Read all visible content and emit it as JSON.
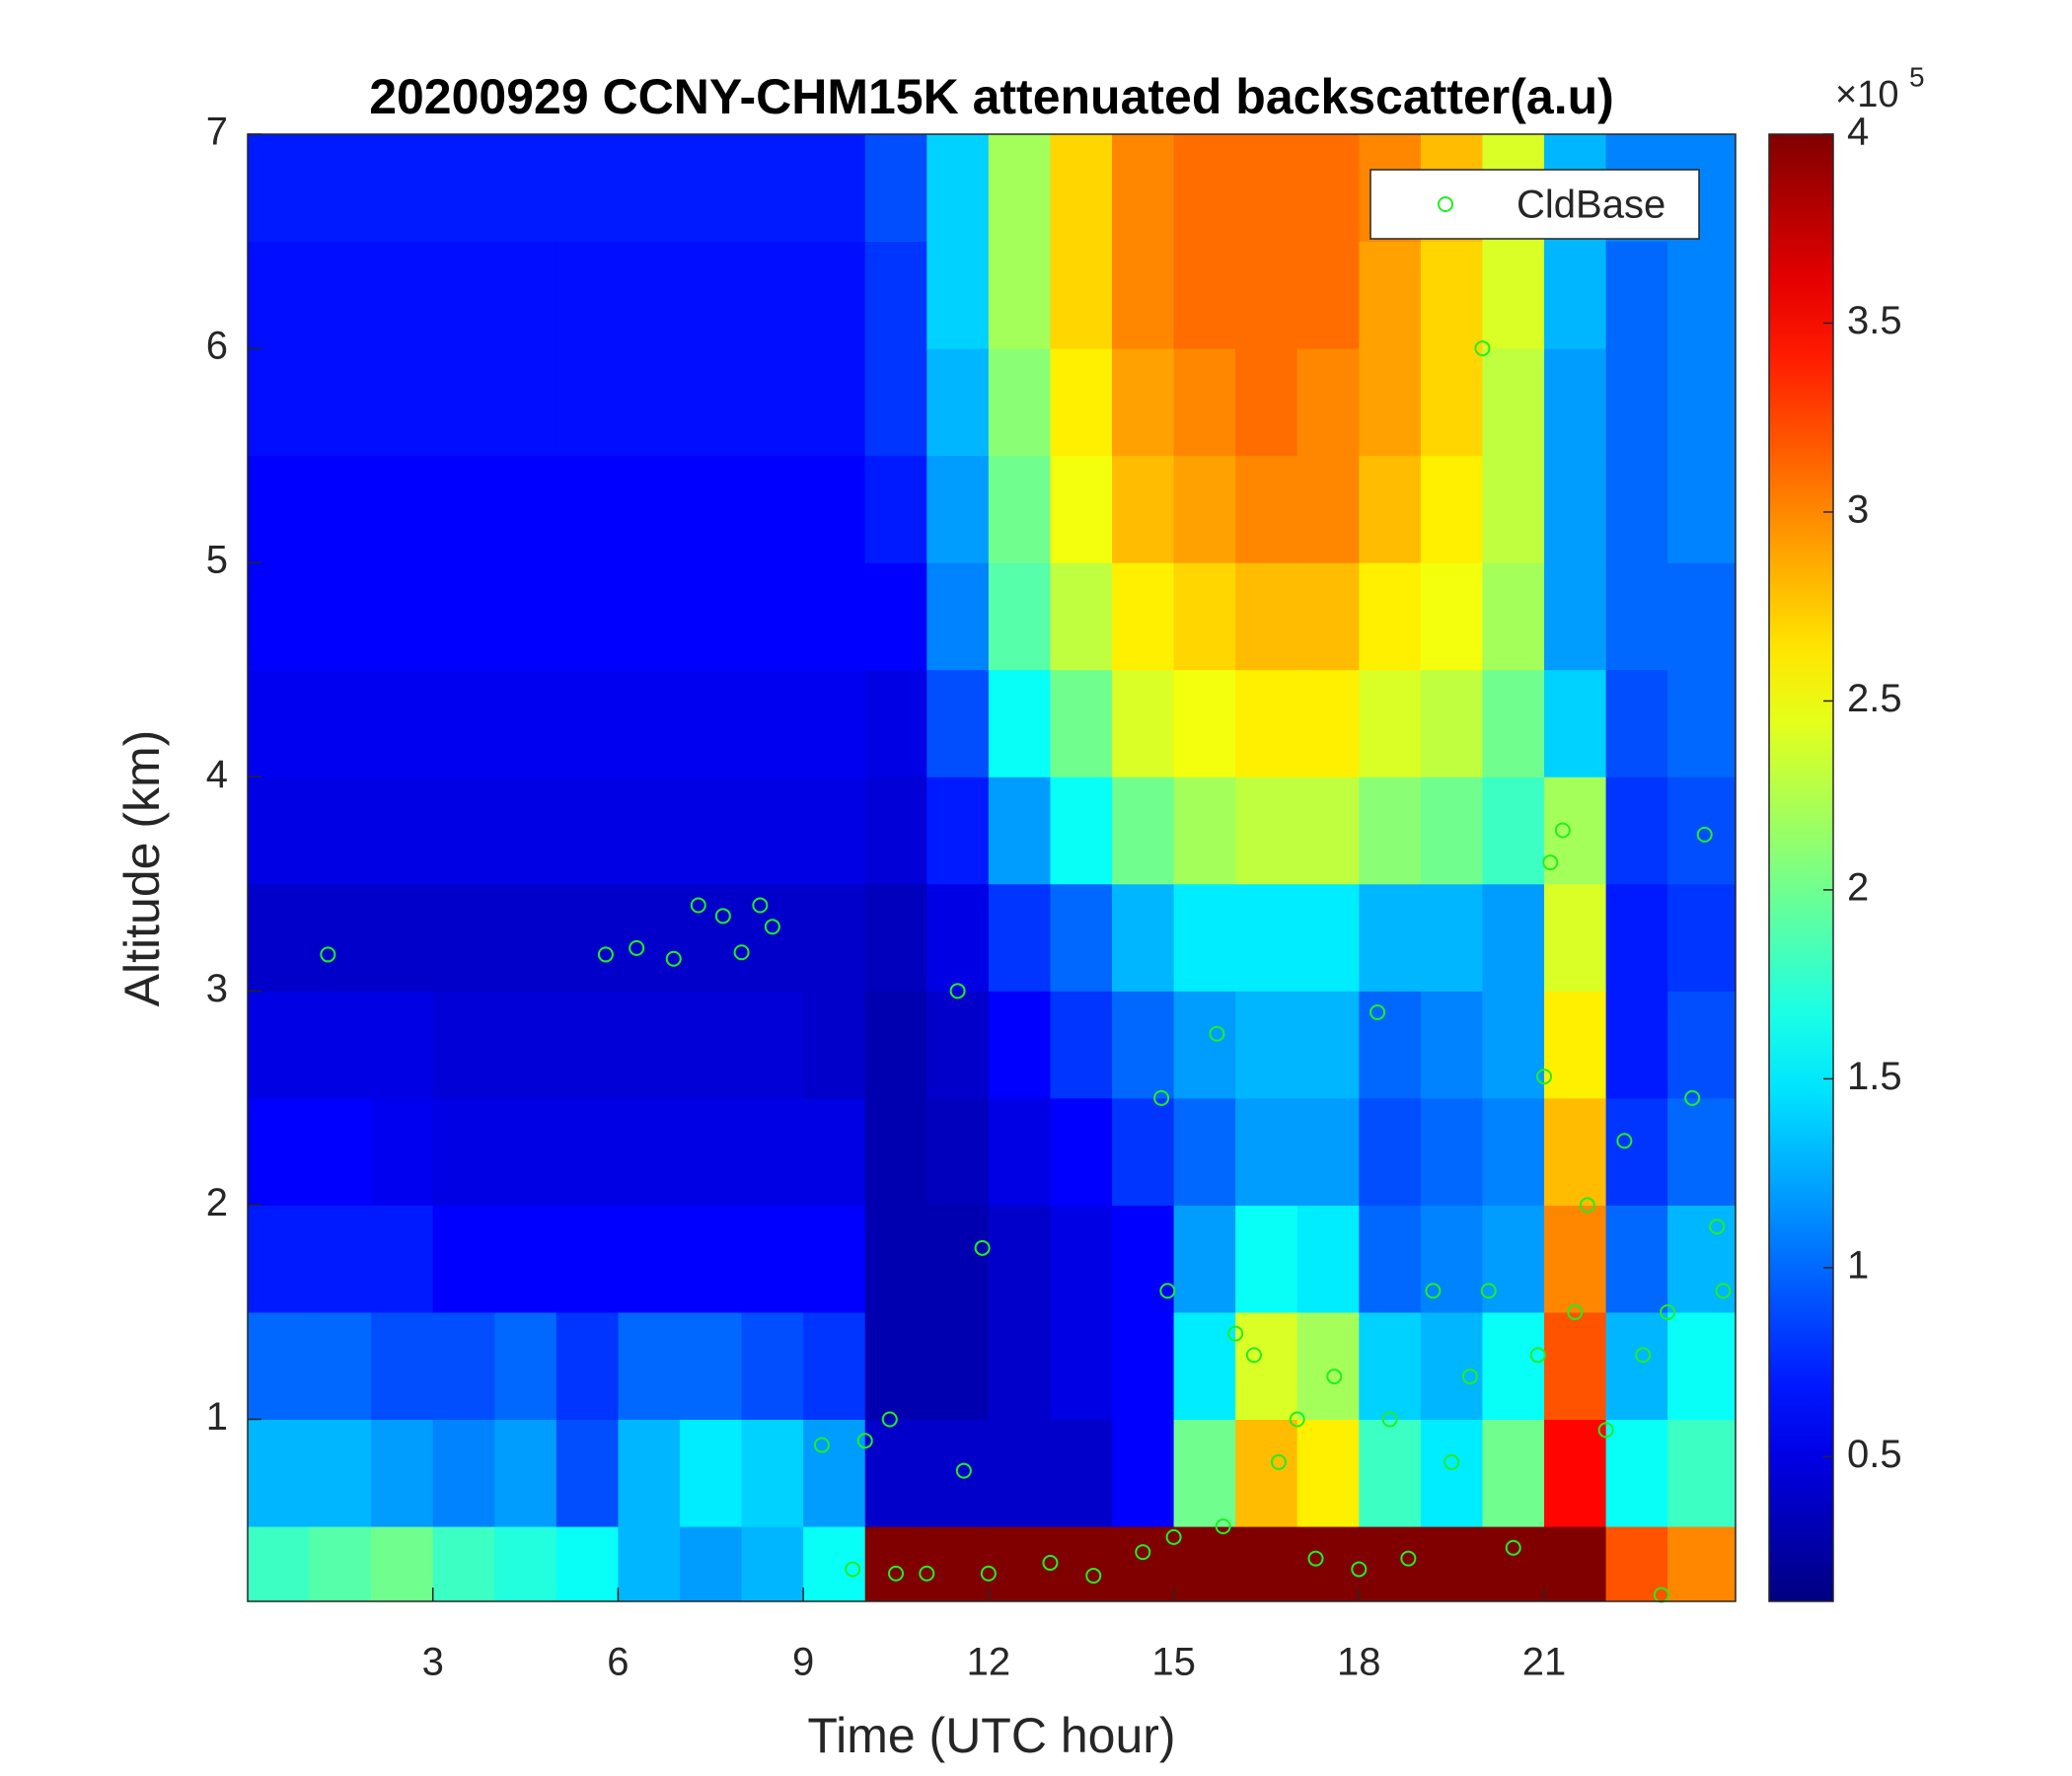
{
  "chart_data": {
    "type": "heatmap",
    "title": "20200929 CCNY-CHM15K attenuated backscatter(a.u)",
    "x_label": "Time (UTC hour)",
    "y_label": "Altitude (km)",
    "xlim": [
      0,
      24.1
    ],
    "ylim": [
      0.15,
      7
    ],
    "xticks": [
      3,
      6,
      9,
      12,
      15,
      18,
      21
    ],
    "yticks": [
      1,
      2,
      3,
      4,
      5,
      6,
      7
    ],
    "x_edges": [
      0,
      1,
      2,
      3,
      4,
      5,
      6,
      7,
      8,
      9,
      10,
      11,
      12,
      13,
      14,
      15,
      16,
      17,
      18,
      19,
      20,
      21,
      22,
      23,
      24.1
    ],
    "y_edges": [
      0.15,
      0.5,
      1,
      1.5,
      2,
      2.5,
      3,
      3.5,
      4,
      4.5,
      5,
      5.5,
      6,
      6.5,
      7
    ],
    "z": [
      [
        1.8,
        1.9,
        2.0,
        1.8,
        1.7,
        1.6,
        1.3,
        1.2,
        1.3,
        1.6,
        4,
        4,
        4,
        4,
        4,
        4,
        4,
        4,
        4,
        4,
        4,
        4,
        3.2,
        3.0
      ],
      [
        1.3,
        1.3,
        1.2,
        1.1,
        1.2,
        0.9,
        1.3,
        1.5,
        1.4,
        1.2,
        0.4,
        0.4,
        0.4,
        0.4,
        0.6,
        2.0,
        2.8,
        2.6,
        1.8,
        1.5,
        2.0,
        3.5,
        1.6,
        1.8
      ],
      [
        1.0,
        1.0,
        0.9,
        0.9,
        1.0,
        0.8,
        1.0,
        1.0,
        0.9,
        0.8,
        0.3,
        0.3,
        0.4,
        0.5,
        0.6,
        1.5,
        2.4,
        2.2,
        1.4,
        1.3,
        1.6,
        3.2,
        1.3,
        1.6
      ],
      [
        0.7,
        0.7,
        0.7,
        0.6,
        0.6,
        0.6,
        0.6,
        0.6,
        0.6,
        0.6,
        0.3,
        0.3,
        0.4,
        0.5,
        0.6,
        1.2,
        1.6,
        1.5,
        1.0,
        1.1,
        1.2,
        3.0,
        1.0,
        1.3
      ],
      [
        0.6,
        0.6,
        0.55,
        0.5,
        0.5,
        0.5,
        0.5,
        0.5,
        0.5,
        0.5,
        0.3,
        0.35,
        0.5,
        0.6,
        0.8,
        1.0,
        1.2,
        1.2,
        0.9,
        1.0,
        1.1,
        2.8,
        0.8,
        1.0
      ],
      [
        0.5,
        0.5,
        0.5,
        0.45,
        0.45,
        0.45,
        0.45,
        0.45,
        0.45,
        0.4,
        0.3,
        0.4,
        0.6,
        0.8,
        1.0,
        1.2,
        1.3,
        1.3,
        1.0,
        1.1,
        1.2,
        2.6,
        0.7,
        0.9
      ],
      [
        0.4,
        0.4,
        0.4,
        0.4,
        0.4,
        0.4,
        0.4,
        0.4,
        0.4,
        0.4,
        0.35,
        0.5,
        0.8,
        1.0,
        1.3,
        1.5,
        1.5,
        1.5,
        1.3,
        1.3,
        1.2,
        2.4,
        0.7,
        0.8
      ],
      [
        0.5,
        0.5,
        0.5,
        0.5,
        0.5,
        0.5,
        0.5,
        0.5,
        0.5,
        0.5,
        0.45,
        0.7,
        1.2,
        1.6,
        2.0,
        2.2,
        2.3,
        2.3,
        2.1,
        2.0,
        1.8,
        2.2,
        0.8,
        0.9
      ],
      [
        0.55,
        0.55,
        0.55,
        0.55,
        0.55,
        0.55,
        0.55,
        0.55,
        0.55,
        0.55,
        0.5,
        0.9,
        1.6,
        2.0,
        2.4,
        2.5,
        2.6,
        2.6,
        2.4,
        2.3,
        2.0,
        1.4,
        0.9,
        1.0
      ],
      [
        0.6,
        0.6,
        0.6,
        0.6,
        0.6,
        0.6,
        0.6,
        0.6,
        0.6,
        0.6,
        0.6,
        1.1,
        1.9,
        2.3,
        2.6,
        2.7,
        2.8,
        2.8,
        2.6,
        2.5,
        2.2,
        1.2,
        1.0,
        1.0
      ],
      [
        0.6,
        0.6,
        0.6,
        0.6,
        0.6,
        0.6,
        0.6,
        0.6,
        0.6,
        0.6,
        0.7,
        1.2,
        2.0,
        2.5,
        2.8,
        2.9,
        3.0,
        3.0,
        2.8,
        2.6,
        2.3,
        1.2,
        1.0,
        1.1
      ],
      [
        0.65,
        0.65,
        0.65,
        0.65,
        0.65,
        0.65,
        0.65,
        0.65,
        0.65,
        0.65,
        0.8,
        1.3,
        2.1,
        2.6,
        2.9,
        3.0,
        3.1,
        3.0,
        2.9,
        2.7,
        2.3,
        1.2,
        1.0,
        1.1
      ],
      [
        0.65,
        0.65,
        0.65,
        0.65,
        0.65,
        0.65,
        0.65,
        0.65,
        0.65,
        0.65,
        0.8,
        1.4,
        2.2,
        2.7,
        3.0,
        3.1,
        3.1,
        3.1,
        2.9,
        2.7,
        2.4,
        1.3,
        1.0,
        1.1
      ],
      [
        0.7,
        0.7,
        0.7,
        0.7,
        0.7,
        0.7,
        0.7,
        0.7,
        0.7,
        0.7,
        0.9,
        1.4,
        2.2,
        2.7,
        3.0,
        3.1,
        3.1,
        3.1,
        3.0,
        2.8,
        2.4,
        1.3,
        1.1,
        1.1
      ]
    ],
    "clim": [
      0.117,
      4
    ],
    "colorbar_ticks": [
      0.5,
      1,
      1.5,
      2,
      2.5,
      3,
      3.5,
      4
    ],
    "colorbar_scale": {
      "base": "×10",
      "exponent": "5"
    },
    "colormap": "jet",
    "legend_position": "upper right",
    "series": [
      {
        "name": "CldBase",
        "color": "#22ee22",
        "marker": "circle",
        "x": [
          1.3,
          5.8,
          6.3,
          6.9,
          7.3,
          7.7,
          8.0,
          8.3,
          8.5,
          9.3,
          9.8,
          10.0,
          10.4,
          10.5,
          11.0,
          11.5,
          11.6,
          11.9,
          12.0,
          13.0,
          13.7,
          14.5,
          14.8,
          14.9,
          15.0,
          15.7,
          15.8,
          16.0,
          16.3,
          16.7,
          17.0,
          17.3,
          17.6,
          18.0,
          18.3,
          18.5,
          18.8,
          19.2,
          19.5,
          19.8,
          20.0,
          20.1,
          20.5,
          20.9,
          21.0,
          21.1,
          21.3,
          21.5,
          21.7,
          22.0,
          22.3,
          22.6,
          22.9,
          23.0,
          23.4,
          23.6,
          23.8,
          23.9
        ],
        "y": [
          3.17,
          3.17,
          3.2,
          3.15,
          3.4,
          3.35,
          3.18,
          3.4,
          3.3,
          0.88,
          0.3,
          0.9,
          1.0,
          0.28,
          0.28,
          3.0,
          0.76,
          1.8,
          0.28,
          0.33,
          0.27,
          0.38,
          2.5,
          1.6,
          0.45,
          2.8,
          0.5,
          1.4,
          1.3,
          0.8,
          1.0,
          0.35,
          1.2,
          0.3,
          2.9,
          1.0,
          0.35,
          1.6,
          0.8,
          1.2,
          6.0,
          1.6,
          0.4,
          1.3,
          2.6,
          3.6,
          3.75,
          1.5,
          2.0,
          0.95,
          2.3,
          1.3,
          0.18,
          1.5,
          2.5,
          3.73,
          1.9,
          1.6
        ]
      }
    ]
  }
}
